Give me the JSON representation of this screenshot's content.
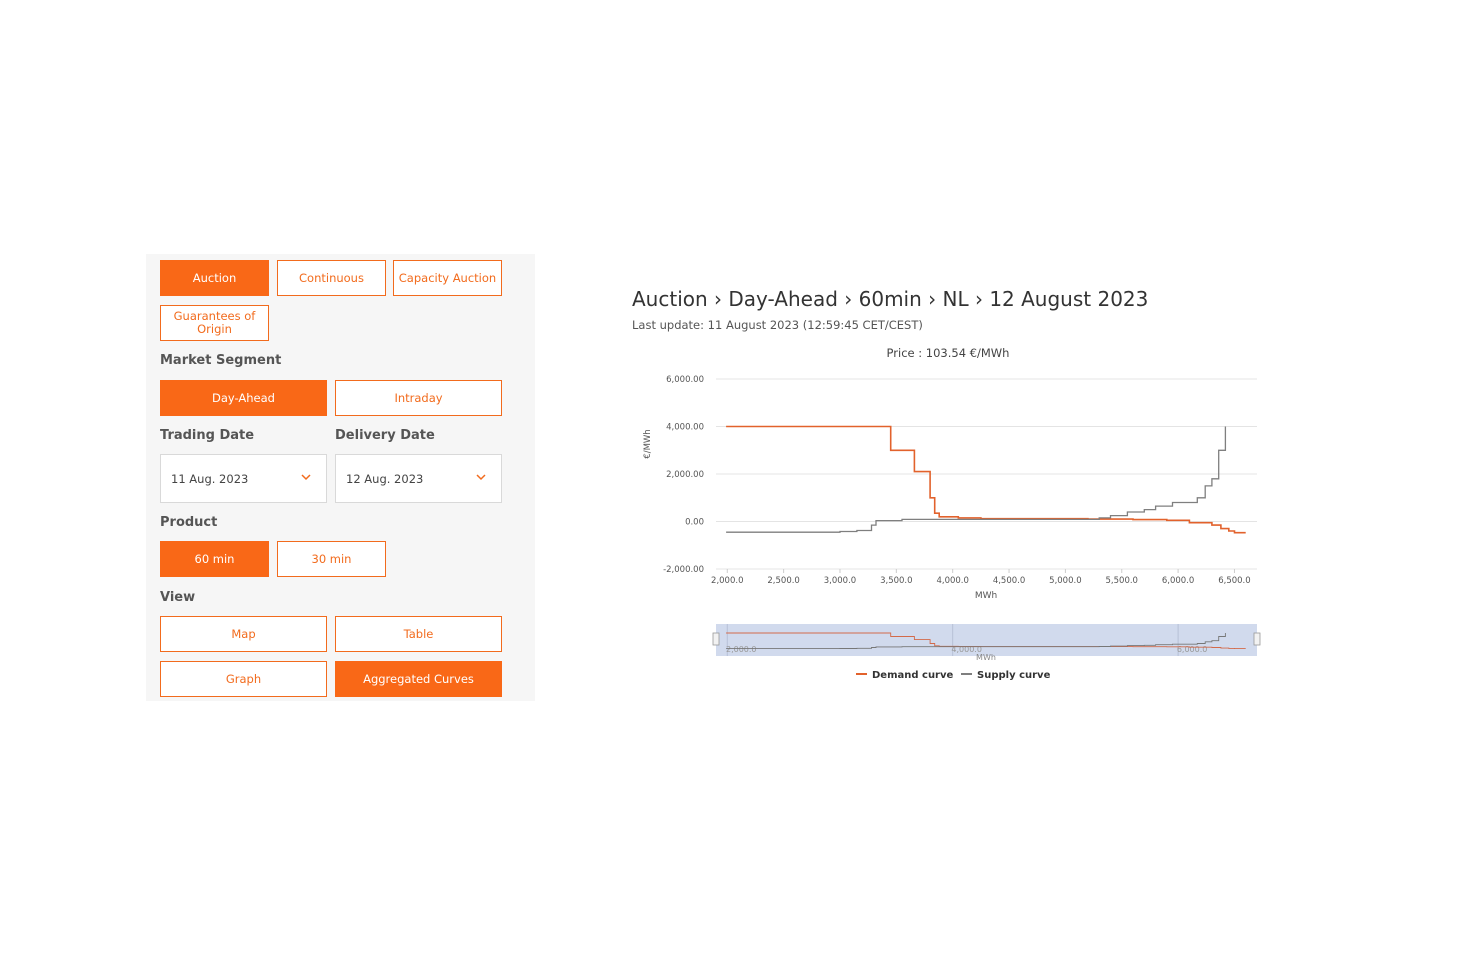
{
  "market_tabs": [
    "Auction",
    "Continuous",
    "Capacity Auction",
    "Guarantees of Origin"
  ],
  "segment": {
    "label": "Market Segment",
    "options": [
      "Day-Ahead",
      "Intraday"
    ]
  },
  "dates": {
    "trading_label": "Trading Date",
    "trading_value": "11 Aug. 2023",
    "delivery_label": "Delivery Date",
    "delivery_value": "12 Aug. 2023"
  },
  "product": {
    "label": "Product",
    "options": [
      "60 min",
      "30 min"
    ]
  },
  "view": {
    "label": "View",
    "options": [
      "Map",
      "Table",
      "Graph",
      "Aggregated Curves"
    ]
  },
  "header": {
    "breadcrumb": "Auction › Day-Ahead › 60min › NL › 12 August 2023",
    "last_update": "Last update: 11 August 2023 (12:59:45 CET/CEST)"
  },
  "colors": {
    "accent": "#f96817",
    "demand": "#e2622c",
    "supply": "#7f7f7f",
    "navigator": "#c9d3ea"
  },
  "chart_data": {
    "type": "line",
    "title": "Price : 103.54 €/MWh",
    "xlabel": "MWh",
    "ylabel": "€/MWh",
    "xlim": [
      1900,
      6700
    ],
    "ylim": [
      -2000,
      6000
    ],
    "x_ticks": [
      "2,000.0",
      "2,500.0",
      "3,000.0",
      "3,500.0",
      "4,000.0",
      "4,500.0",
      "5,000.0",
      "5,500.0",
      "6,000.0",
      "6,500.0"
    ],
    "y_ticks": [
      "6,000.00",
      "4,000.00",
      "2,000.00",
      "0.00",
      "-2,000.00"
    ],
    "navigator_ticks": [
      "2,000.0",
      "4,000.0",
      "6,000.0"
    ],
    "navigator_xlabel": "MWh",
    "series": [
      {
        "name": "Demand curve",
        "points": [
          [
            1990,
            4000
          ],
          [
            3450,
            4000
          ],
          [
            3450,
            3000
          ],
          [
            3660,
            3000
          ],
          [
            3660,
            2100
          ],
          [
            3800,
            2100
          ],
          [
            3800,
            1000
          ],
          [
            3840,
            1000
          ],
          [
            3840,
            350
          ],
          [
            3880,
            350
          ],
          [
            3880,
            200
          ],
          [
            4050,
            200
          ],
          [
            4050,
            150
          ],
          [
            4250,
            150
          ],
          [
            4250,
            120
          ],
          [
            5200,
            120
          ],
          [
            5200,
            100
          ],
          [
            5600,
            100
          ],
          [
            5600,
            80
          ],
          [
            5900,
            80
          ],
          [
            5900,
            50
          ],
          [
            6100,
            50
          ],
          [
            6100,
            -50
          ],
          [
            6300,
            -50
          ],
          [
            6300,
            -150
          ],
          [
            6380,
            -150
          ],
          [
            6380,
            -300
          ],
          [
            6450,
            -300
          ],
          [
            6450,
            -400
          ],
          [
            6500,
            -400
          ],
          [
            6500,
            -470
          ],
          [
            6600,
            -470
          ]
        ]
      },
      {
        "name": "Supply curve",
        "points": [
          [
            1990,
            -450
          ],
          [
            3000,
            -450
          ],
          [
            3000,
            -420
          ],
          [
            3150,
            -420
          ],
          [
            3150,
            -380
          ],
          [
            3280,
            -380
          ],
          [
            3280,
            -150
          ],
          [
            3320,
            -150
          ],
          [
            3320,
            40
          ],
          [
            3550,
            40
          ],
          [
            3550,
            90
          ],
          [
            5300,
            90
          ],
          [
            5300,
            150
          ],
          [
            5400,
            150
          ],
          [
            5400,
            250
          ],
          [
            5550,
            250
          ],
          [
            5550,
            400
          ],
          [
            5700,
            400
          ],
          [
            5700,
            500
          ],
          [
            5800,
            500
          ],
          [
            5800,
            650
          ],
          [
            5950,
            650
          ],
          [
            5950,
            800
          ],
          [
            6170,
            800
          ],
          [
            6170,
            1000
          ],
          [
            6240,
            1000
          ],
          [
            6240,
            1500
          ],
          [
            6300,
            1500
          ],
          [
            6300,
            1800
          ],
          [
            6360,
            1800
          ],
          [
            6360,
            3000
          ],
          [
            6420,
            3000
          ],
          [
            6420,
            4000
          ]
        ]
      }
    ]
  }
}
